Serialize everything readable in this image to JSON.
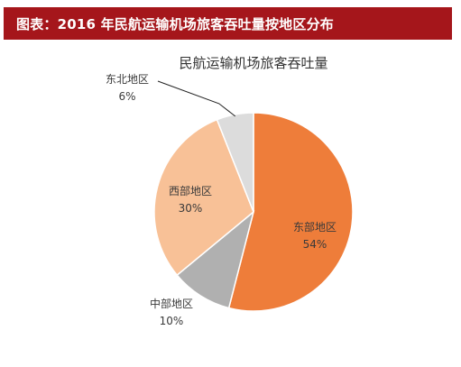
{
  "figure": {
    "banner_title": "图表：2016 年民航运输机场旅客吞吐量按地区分布",
    "banner_color": "#a5161b"
  },
  "chart_data": {
    "type": "pie",
    "title": "民航运输机场旅客吞吐量",
    "slices": [
      {
        "label": "东部地区",
        "value": 54,
        "value_label": "54%",
        "color": "#ee7d3a"
      },
      {
        "label": "中部地区",
        "value": 10,
        "value_label": "10%",
        "color": "#b0b0b0"
      },
      {
        "label": "西部地区",
        "value": 30,
        "value_label": "30%",
        "color": "#f8c197"
      },
      {
        "label": "东北地区",
        "value": 6,
        "value_label": "6%",
        "color": "#dcdcdc"
      }
    ],
    "start_angle_deg": 0,
    "direction": "clockwise"
  }
}
